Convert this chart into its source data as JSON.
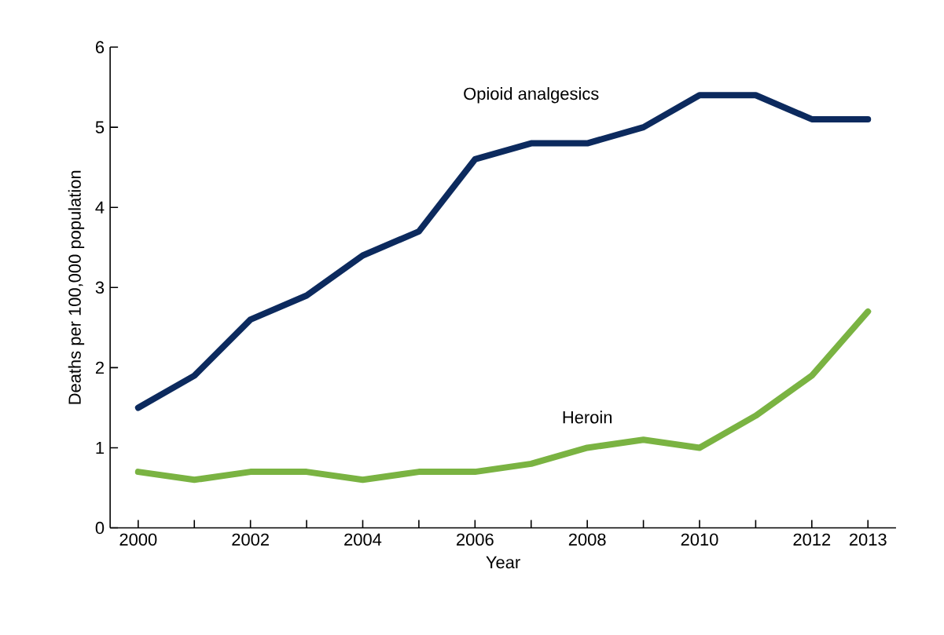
{
  "chart_data": {
    "type": "line",
    "xlabel": "Year",
    "ylabel": "Deaths per 100,000 population",
    "x": [
      2000,
      2001,
      2002,
      2003,
      2004,
      2005,
      2006,
      2007,
      2008,
      2009,
      2010,
      2011,
      2012,
      2013
    ],
    "series": [
      {
        "name": "Opioid analgesics",
        "color": "#0c2a5e",
        "values": [
          1.5,
          1.9,
          2.6,
          2.9,
          3.4,
          3.7,
          4.6,
          4.8,
          4.8,
          5.0,
          5.4,
          5.4,
          5.1,
          5.1
        ]
      },
      {
        "name": "Heroin",
        "color": "#7ab342",
        "values": [
          0.7,
          0.6,
          0.7,
          0.7,
          0.6,
          0.7,
          0.7,
          0.8,
          1.0,
          1.1,
          1.0,
          1.4,
          1.9,
          2.7
        ]
      }
    ],
    "xlim": [
      1999.5,
      2013.5
    ],
    "ylim": [
      0,
      6
    ],
    "xticks": [
      2000,
      {
        "value": 2001,
        "label": null
      },
      2002,
      {
        "value": 2003,
        "label": null
      },
      2004,
      {
        "value": 2005,
        "label": null
      },
      2006,
      {
        "value": 2007,
        "label": null
      },
      2008,
      {
        "value": 2009,
        "label": null
      },
      2010,
      {
        "value": 2011,
        "label": null
      },
      2012,
      2013
    ],
    "yticks": [
      0,
      1,
      2,
      3,
      4,
      5,
      6
    ],
    "grid": false,
    "marker": "none",
    "line_style": "solid"
  }
}
